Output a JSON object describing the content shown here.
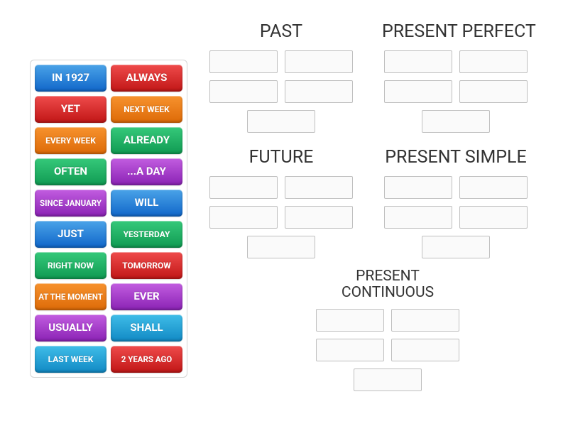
{
  "colors": {
    "blue": {
      "top": "#4aa3e8",
      "bottom": "#1066c9"
    },
    "red": {
      "top": "#ef4b4b",
      "bottom": "#c11616"
    },
    "orange": {
      "top": "#f7922e",
      "bottom": "#dd6a07"
    },
    "green": {
      "top": "#35c97a",
      "bottom": "#109a52"
    },
    "purple": {
      "top": "#c25de0",
      "bottom": "#8a22b4"
    },
    "cyan": {
      "top": "#3fbde8",
      "bottom": "#1189c4"
    }
  },
  "tiles": [
    {
      "label": "IN 1927",
      "color": "blue",
      "size": "normal"
    },
    {
      "label": "ALWAYS",
      "color": "red",
      "size": "normal"
    },
    {
      "label": "YET",
      "color": "red",
      "size": "normal"
    },
    {
      "label": "NEXT WEEK",
      "color": "orange",
      "size": "small"
    },
    {
      "label": "EVERY WEEK",
      "color": "orange",
      "size": "small"
    },
    {
      "label": "ALREADY",
      "color": "green",
      "size": "normal"
    },
    {
      "label": "OFTEN",
      "color": "green",
      "size": "normal"
    },
    {
      "label": "...A DAY",
      "color": "purple",
      "size": "normal"
    },
    {
      "label": "SINCE JANUARY",
      "color": "purple",
      "size": "xsmall"
    },
    {
      "label": "WILL",
      "color": "blue",
      "size": "normal"
    },
    {
      "label": "JUST",
      "color": "blue",
      "size": "normal"
    },
    {
      "label": "YESTERDAY",
      "color": "green",
      "size": "small"
    },
    {
      "label": "RIGHT NOW",
      "color": "green",
      "size": "small"
    },
    {
      "label": "TOMORROW",
      "color": "red",
      "size": "small"
    },
    {
      "label": "AT THE MOMENT",
      "color": "orange",
      "size": "xsmall"
    },
    {
      "label": "EVER",
      "color": "purple",
      "size": "normal"
    },
    {
      "label": "USUALLY",
      "color": "purple",
      "size": "normal"
    },
    {
      "label": "SHALL",
      "color": "cyan",
      "size": "normal"
    },
    {
      "label": "LAST WEEK",
      "color": "cyan",
      "size": "small"
    },
    {
      "label": "2 YEARS AGO",
      "color": "red",
      "size": "xsmall"
    }
  ],
  "categories_row1": [
    {
      "title": "PAST",
      "slots": 5,
      "twoLine": false
    },
    {
      "title": "PRESENT PERFECT",
      "slots": 5,
      "twoLine": false
    }
  ],
  "categories_row2": [
    {
      "title": "FUTURE",
      "slots": 5,
      "twoLine": false
    },
    {
      "title": "PRESENT SIMPLE",
      "slots": 5,
      "twoLine": false
    }
  ],
  "categories_row3": [
    {
      "title": "PRESENT CONTINUOUS",
      "slots": 5,
      "twoLine": true
    }
  ]
}
